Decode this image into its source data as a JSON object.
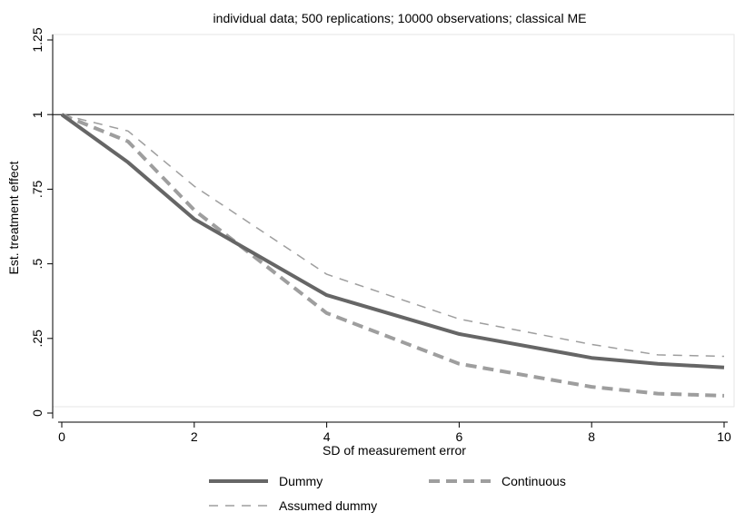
{
  "chart_data": {
    "type": "line",
    "title": "individual data; 500 replications; 10000 observations; classical ME",
    "xlabel": "SD of measurement error",
    "ylabel": "Est. treatment effect",
    "xlim": [
      0,
      10
    ],
    "ylim": [
      0,
      1.25
    ],
    "x_ticks": [
      0,
      2,
      4,
      6,
      8,
      10
    ],
    "x_tick_labels": [
      "0",
      "2",
      "4",
      "6",
      "8",
      "10"
    ],
    "y_ticks": [
      0,
      0.25,
      0.5,
      0.75,
      1,
      1.25
    ],
    "y_tick_labels": [
      "0",
      ".25",
      ".5",
      ".75",
      "1",
      "1.25"
    ],
    "reference_line": {
      "y": 1,
      "color": "#000000"
    },
    "grid": false,
    "legend": {
      "position": "bottom",
      "columns": 2
    },
    "series": [
      {
        "name": "Dummy",
        "style": "solid-thick",
        "color": "#666666",
        "x": [
          0,
          1,
          2,
          4,
          6,
          8,
          9,
          10
        ],
        "y": [
          1.0,
          0.84,
          0.65,
          0.395,
          0.265,
          0.185,
          0.165,
          0.153
        ]
      },
      {
        "name": "Continuous",
        "style": "dashed-thick",
        "color": "#9e9e9e",
        "x": [
          0,
          1,
          2,
          4,
          6,
          8,
          9,
          10
        ],
        "y": [
          1.0,
          0.91,
          0.68,
          0.335,
          0.165,
          0.088,
          0.065,
          0.058
        ]
      },
      {
        "name": "Assumed dummy",
        "style": "dashed-thin",
        "color": "#9e9e9e",
        "x": [
          0,
          1,
          2,
          4,
          6,
          8,
          9,
          10
        ],
        "y": [
          1.0,
          0.945,
          0.76,
          0.465,
          0.315,
          0.23,
          0.195,
          0.19
        ]
      }
    ]
  }
}
